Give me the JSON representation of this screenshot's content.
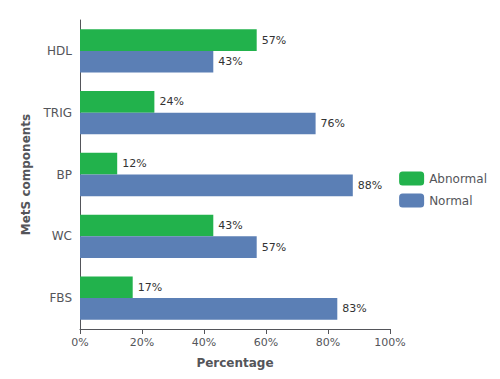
{
  "chart_data": {
    "type": "bar",
    "orientation": "horizontal",
    "categories": [
      "HDL",
      "TRIG",
      "BP",
      "WC",
      "FBS"
    ],
    "series": [
      {
        "name": "Abnormal",
        "color": "#22b24c",
        "values": [
          57,
          24,
          12,
          43,
          17
        ],
        "value_labels": [
          "57%",
          "24%",
          "12%",
          "43%",
          "17%"
        ]
      },
      {
        "name": "Normal",
        "color": "#5b7fb5",
        "values": [
          43,
          76,
          88,
          57,
          83
        ],
        "value_labels": [
          "43%",
          "76%",
          "88%",
          "57%",
          "83%"
        ]
      }
    ],
    "xlabel": "Percentage",
    "ylabel": "MetS components",
    "xlim": [
      0,
      100
    ],
    "xticks": [
      {
        "value": 0,
        "label": "0%"
      },
      {
        "value": 20,
        "label": "20%"
      },
      {
        "value": 40,
        "label": "40%"
      },
      {
        "value": 60,
        "label": "60%"
      },
      {
        "value": 80,
        "label": "80%"
      },
      {
        "value": 100,
        "label": "100%"
      }
    ],
    "legend": "right",
    "data_labels": true,
    "grid": false
  }
}
